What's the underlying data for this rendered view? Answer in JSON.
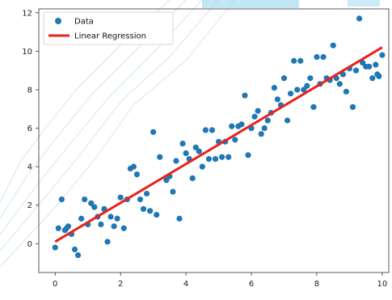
{
  "chart_data": {
    "type": "scatter",
    "xlim": [
      -0.5,
      10.2
    ],
    "ylim": [
      -1.5,
      12.2
    ],
    "grid": false,
    "legend_position": "top-left",
    "x_ticks": [
      "0",
      "2",
      "4",
      "6",
      "8",
      "10"
    ],
    "y_ticks": [
      "0",
      "2",
      "4",
      "6",
      "8",
      "10",
      "12"
    ],
    "series": [
      {
        "name": "Data",
        "kind": "scatter",
        "color": "#1f77b4",
        "points": [
          [
            0.0,
            -0.2
          ],
          [
            0.1,
            0.8
          ],
          [
            0.2,
            2.3
          ],
          [
            0.3,
            0.7
          ],
          [
            0.35,
            0.8
          ],
          [
            0.4,
            0.9
          ],
          [
            0.5,
            0.5
          ],
          [
            0.6,
            -0.3
          ],
          [
            0.7,
            -0.6
          ],
          [
            0.8,
            1.3
          ],
          [
            0.9,
            2.3
          ],
          [
            1.0,
            1.0
          ],
          [
            1.1,
            2.1
          ],
          [
            1.2,
            1.9
          ],
          [
            1.3,
            1.4
          ],
          [
            1.4,
            1.0
          ],
          [
            1.5,
            1.8
          ],
          [
            1.6,
            0.1
          ],
          [
            1.7,
            1.4
          ],
          [
            1.8,
            0.9
          ],
          [
            1.9,
            1.3
          ],
          [
            2.0,
            2.4
          ],
          [
            2.1,
            0.8
          ],
          [
            2.2,
            2.3
          ],
          [
            2.3,
            3.9
          ],
          [
            2.4,
            4.0
          ],
          [
            2.5,
            3.6
          ],
          [
            2.6,
            2.3
          ],
          [
            2.7,
            1.8
          ],
          [
            2.8,
            2.6
          ],
          [
            2.9,
            1.7
          ],
          [
            3.0,
            5.8
          ],
          [
            3.1,
            1.5
          ],
          [
            3.2,
            4.5
          ],
          [
            3.4,
            3.3
          ],
          [
            3.5,
            3.5
          ],
          [
            3.6,
            2.7
          ],
          [
            3.7,
            4.3
          ],
          [
            3.8,
            1.3
          ],
          [
            3.9,
            5.2
          ],
          [
            4.0,
            4.7
          ],
          [
            4.1,
            4.4
          ],
          [
            4.2,
            3.4
          ],
          [
            4.3,
            5.0
          ],
          [
            4.4,
            4.8
          ],
          [
            4.5,
            4.0
          ],
          [
            4.6,
            5.9
          ],
          [
            4.7,
            4.4
          ],
          [
            4.8,
            5.9
          ],
          [
            4.9,
            4.4
          ],
          [
            5.0,
            5.3
          ],
          [
            5.1,
            4.5
          ],
          [
            5.2,
            5.3
          ],
          [
            5.3,
            4.5
          ],
          [
            5.4,
            6.1
          ],
          [
            5.5,
            5.4
          ],
          [
            5.6,
            6.1
          ],
          [
            5.7,
            6.2
          ],
          [
            5.8,
            7.7
          ],
          [
            5.9,
            4.6
          ],
          [
            6.0,
            6.0
          ],
          [
            6.1,
            6.6
          ],
          [
            6.2,
            6.9
          ],
          [
            6.3,
            5.7
          ],
          [
            6.4,
            6.0
          ],
          [
            6.5,
            6.4
          ],
          [
            6.6,
            6.8
          ],
          [
            6.7,
            8.1
          ],
          [
            6.8,
            7.5
          ],
          [
            6.9,
            7.2
          ],
          [
            7.0,
            8.6
          ],
          [
            7.1,
            6.4
          ],
          [
            7.2,
            7.8
          ],
          [
            7.3,
            9.5
          ],
          [
            7.4,
            8.0
          ],
          [
            7.5,
            9.5
          ],
          [
            7.6,
            8.0
          ],
          [
            7.7,
            8.2
          ],
          [
            7.8,
            8.6
          ],
          [
            7.9,
            7.1
          ],
          [
            8.0,
            9.7
          ],
          [
            8.1,
            8.3
          ],
          [
            8.2,
            9.7
          ],
          [
            8.3,
            8.6
          ],
          [
            8.4,
            8.5
          ],
          [
            8.5,
            10.3
          ],
          [
            8.6,
            8.6
          ],
          [
            8.7,
            8.3
          ],
          [
            8.8,
            8.8
          ],
          [
            8.9,
            7.9
          ],
          [
            9.0,
            9.1
          ],
          [
            9.1,
            7.1
          ],
          [
            9.2,
            9.0
          ],
          [
            9.3,
            11.7
          ],
          [
            9.4,
            9.4
          ],
          [
            9.5,
            9.2
          ],
          [
            9.6,
            9.2
          ],
          [
            9.7,
            8.6
          ],
          [
            9.8,
            9.3
          ],
          [
            9.85,
            8.8
          ],
          [
            9.9,
            8.7
          ],
          [
            10.0,
            9.8
          ]
        ]
      },
      {
        "name": "Linear Regression",
        "kind": "line",
        "color": "#e8231b",
        "x": [
          0,
          10
        ],
        "y": [
          0.1,
          10.2
        ]
      }
    ]
  }
}
